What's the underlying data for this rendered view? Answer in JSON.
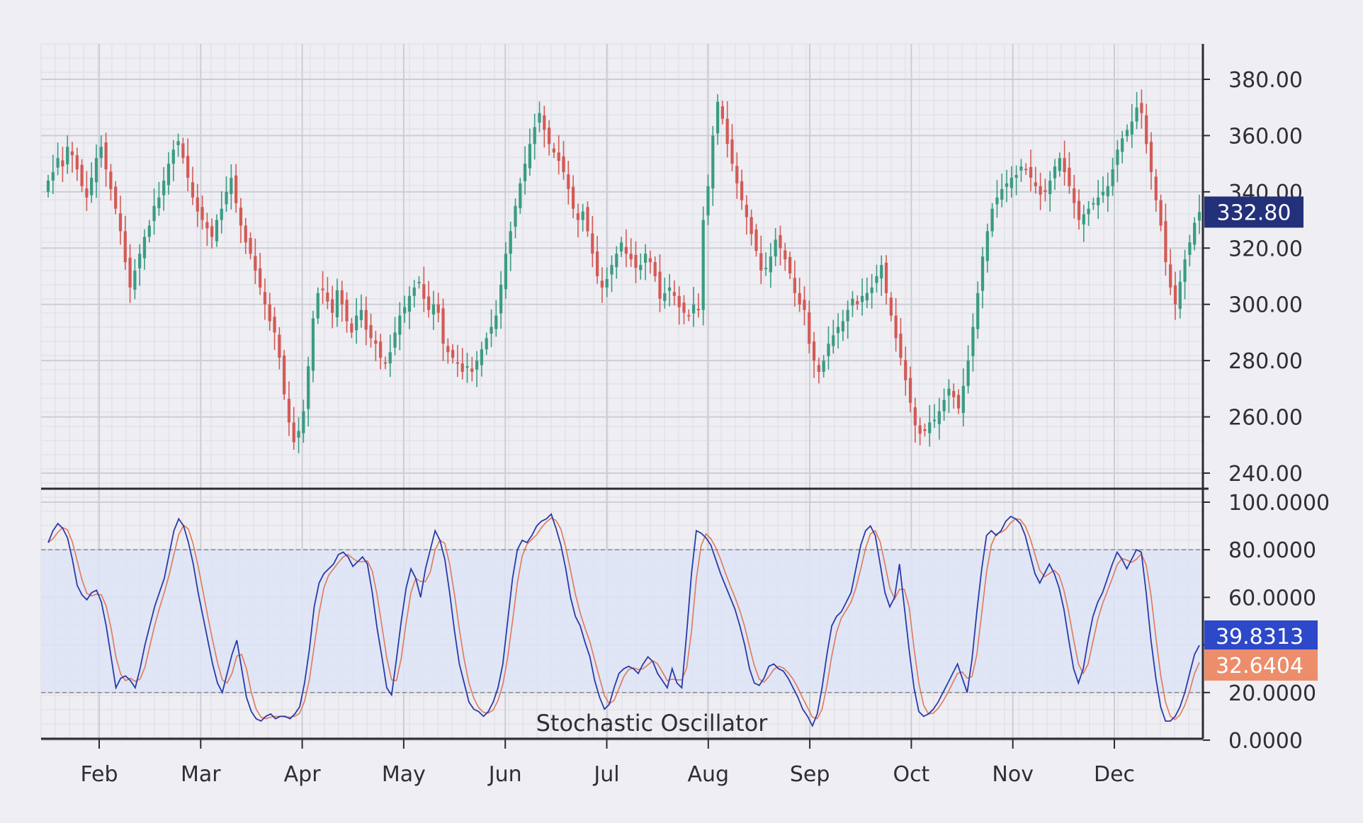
{
  "colors": {
    "background": "#eeeef3",
    "minor_grid": "#dcdce4",
    "major_grid": "#cdcdd6",
    "axis": "#2b2b30",
    "bull": "#3a9c82",
    "bear": "#d35a55",
    "price_badge": "#23317a",
    "k_line": "#2a3aa8",
    "d_line": "#e0785a",
    "k_badge": "#2d48c8",
    "d_badge": "#ec8e6c",
    "band_fill": "#dde4f4",
    "level_line": "#8a8a94"
  },
  "chart_data": [
    {
      "type": "candlestick",
      "title": "",
      "x_months": [
        "Feb",
        "Mar",
        "Apr",
        "May",
        "Jun",
        "Jul",
        "Aug",
        "Sep",
        "Oct",
        "Nov",
        "Dec"
      ],
      "ylim": [
        235,
        392
      ],
      "y_ticks": [
        "240.00",
        "260.00",
        "280.00",
        "300.00",
        "320.00",
        "340.00",
        "360.00",
        "380.00"
      ],
      "last_price": "332.80",
      "grid": true,
      "series_closes": [
        344,
        347,
        352,
        349,
        356,
        353,
        348,
        342,
        338,
        345,
        352,
        356,
        348,
        341,
        334,
        326,
        315,
        306,
        312,
        318,
        324,
        328,
        335,
        338,
        344,
        350,
        355,
        358,
        352,
        345,
        338,
        333,
        330,
        327,
        324,
        330,
        334,
        340,
        345,
        336,
        328,
        322,
        318,
        312,
        306,
        300,
        294,
        290,
        281,
        268,
        258,
        251,
        255,
        262,
        278,
        295,
        304,
        305,
        301,
        297,
        305,
        300,
        294,
        290,
        296,
        298,
        291,
        288,
        286,
        281,
        279,
        283,
        290,
        296,
        299,
        303,
        306,
        308,
        302,
        298,
        300,
        297,
        286,
        283,
        281,
        279,
        276,
        278,
        276,
        280,
        284,
        288,
        292,
        296,
        307,
        318,
        326,
        335,
        343,
        350,
        357,
        363,
        368,
        362,
        357,
        354,
        351,
        347,
        341,
        334,
        330,
        333,
        326,
        318,
        310,
        306,
        309,
        314,
        318,
        322,
        318,
        316,
        313,
        314,
        318,
        315,
        310,
        302,
        304,
        306,
        303,
        299,
        297,
        296,
        300,
        298,
        330,
        342,
        360,
        372,
        366,
        357,
        350,
        343,
        337,
        331,
        325,
        319,
        312,
        313,
        317,
        323,
        320,
        316,
        311,
        304,
        300,
        298,
        286,
        280,
        276,
        280,
        286,
        289,
        292,
        294,
        298,
        302,
        300,
        303,
        304,
        306,
        310,
        314,
        304,
        296,
        288,
        281,
        273,
        265,
        257,
        254,
        255,
        258,
        259,
        262,
        266,
        270,
        267,
        263,
        271,
        280,
        292,
        304,
        317,
        326,
        334,
        338,
        341,
        343,
        345,
        346,
        349,
        348,
        345,
        342,
        339,
        340,
        344,
        349,
        352,
        347,
        342,
        336,
        330,
        332,
        334,
        336,
        338,
        340,
        342,
        348,
        355,
        359,
        362,
        365,
        370,
        368,
        357,
        347,
        337,
        328,
        315,
        306,
        300,
        308,
        316,
        322,
        329,
        332.8
      ]
    },
    {
      "type": "line",
      "title": "Stochastic Oscillator",
      "ylim": [
        0,
        100
      ],
      "y_ticks": [
        "0.0000",
        "20.0000",
        "40.0000",
        "60.0000",
        "80.0000",
        "100.0000"
      ],
      "levels": [
        20,
        80
      ],
      "k_value": "39.8313",
      "d_value": "32.6404",
      "k_series": [
        83,
        88,
        91,
        89,
        85,
        76,
        65,
        61,
        59,
        62,
        63,
        58,
        48,
        35,
        22,
        26,
        27,
        25,
        22,
        30,
        40,
        48,
        56,
        62,
        68,
        78,
        88,
        93,
        90,
        83,
        74,
        62,
        52,
        42,
        32,
        24,
        20,
        28,
        36,
        42,
        30,
        18,
        12,
        9,
        8,
        10,
        11,
        9,
        10,
        10,
        9,
        11,
        14,
        24,
        38,
        56,
        66,
        70,
        72,
        74,
        78,
        79,
        77,
        73,
        75,
        77,
        74,
        62,
        47,
        35,
        22,
        19,
        34,
        50,
        64,
        72,
        68,
        60,
        72,
        80,
        88,
        84,
        76,
        62,
        46,
        32,
        24,
        16,
        13,
        12,
        10,
        12,
        16,
        22,
        32,
        50,
        68,
        80,
        84,
        83,
        86,
        90,
        92,
        93,
        95,
        89,
        82,
        72,
        60,
        52,
        48,
        41,
        35,
        25,
        18,
        13,
        15,
        22,
        28,
        30,
        31,
        30,
        28,
        32,
        35,
        33,
        28,
        25,
        22,
        30,
        24,
        22,
        45,
        70,
        88,
        87,
        85,
        82,
        76,
        70,
        65,
        60,
        55,
        48,
        40,
        30,
        24,
        23,
        26,
        31,
        32,
        30,
        29,
        26,
        22,
        18,
        13,
        10,
        6,
        11,
        22,
        36,
        48,
        52,
        54,
        58,
        62,
        72,
        82,
        88,
        90,
        86,
        74,
        62,
        56,
        60,
        74,
        56,
        38,
        22,
        12,
        10,
        11,
        13,
        16,
        20,
        24,
        28,
        32,
        26,
        20,
        34,
        54,
        72,
        86,
        88,
        86,
        88,
        92,
        94,
        93,
        91,
        86,
        78,
        70,
        66,
        70,
        74,
        70,
        64,
        55,
        42,
        30,
        24,
        30,
        42,
        52,
        58,
        62,
        68,
        74,
        79,
        76,
        72,
        76,
        80,
        79,
        62,
        42,
        26,
        14,
        8,
        8,
        10,
        14,
        20,
        28,
        36,
        39.8313
      ]
    }
  ]
}
